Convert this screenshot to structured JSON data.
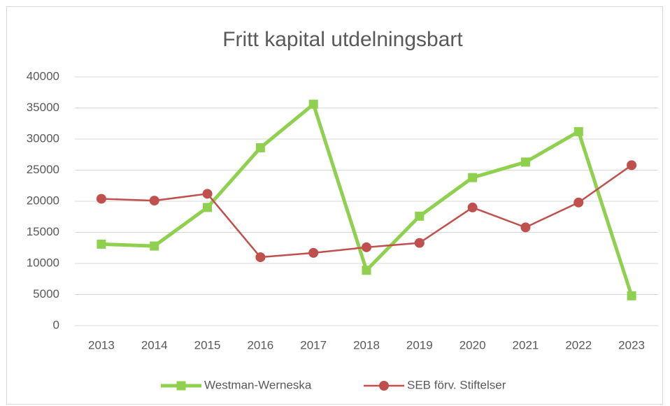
{
  "chart_data": {
    "type": "line",
    "title": "Fritt kapital utdelningsbart",
    "categories": [
      "2013",
      "2014",
      "2015",
      "2016",
      "2017",
      "2018",
      "2019",
      "2020",
      "2021",
      "2022",
      "2023"
    ],
    "series": [
      {
        "name": "Westman-Werneska",
        "color": "#8fd14f",
        "marker": "square",
        "values": [
          13100,
          12800,
          19000,
          28600,
          35600,
          8900,
          17600,
          23800,
          26300,
          31200,
          4800
        ]
      },
      {
        "name": "SEB förv. Stiftelser",
        "color": "#c0504d",
        "marker": "circle",
        "values": [
          20400,
          20100,
          21200,
          11000,
          11700,
          12600,
          13300,
          19000,
          15800,
          19800,
          25800
        ]
      }
    ],
    "ylim": [
      0,
      40000
    ],
    "yticks": [
      0,
      5000,
      10000,
      15000,
      20000,
      25000,
      30000,
      35000,
      40000
    ],
    "grid": true,
    "legend": "bottom"
  }
}
